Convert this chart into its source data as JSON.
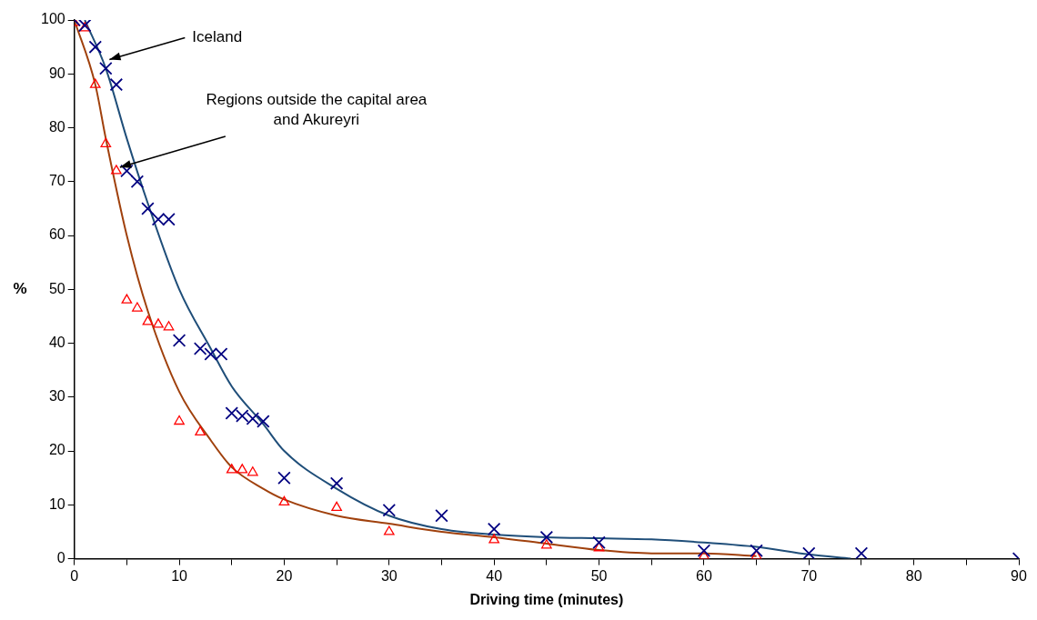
{
  "chart_data": {
    "type": "scatter",
    "xlabel": "Driving time (minutes)",
    "ylabel": "%",
    "xlim": [
      0,
      90
    ],
    "ylim": [
      0,
      100
    ],
    "xticks": [
      0,
      {
        "value": 5,
        "label": null
      },
      10,
      {
        "value": 15,
        "label": null
      },
      20,
      {
        "value": 25,
        "label": null
      },
      30,
      {
        "value": 35,
        "label": null
      },
      40,
      {
        "value": 45,
        "label": null
      },
      50,
      {
        "value": 55,
        "label": null
      },
      60,
      {
        "value": 65,
        "label": null
      },
      70,
      {
        "value": 75,
        "label": null
      },
      80,
      {
        "value": 85,
        "label": null
      },
      90
    ],
    "yticks": [
      0,
      10,
      20,
      30,
      40,
      50,
      60,
      70,
      80,
      90,
      100
    ],
    "grid": false,
    "legend": false,
    "series": [
      {
        "type": "scatter",
        "marker": "cross",
        "color": "#000080",
        "x": [
          0,
          1,
          2,
          3,
          4,
          5,
          6,
          7,
          8,
          9,
          10,
          12,
          13,
          14,
          15,
          16,
          17,
          18,
          20,
          25,
          30,
          35,
          40,
          45,
          50,
          60,
          65,
          70,
          75,
          90
        ],
        "values": [
          100,
          99,
          95,
          91,
          88,
          72,
          70,
          65,
          63,
          63,
          40.5,
          39,
          38,
          38,
          27,
          26.5,
          26,
          25.5,
          15,
          14,
          9,
          8,
          5.5,
          4,
          3,
          1.5,
          1.5,
          1,
          1,
          0
        ]
      },
      {
        "type": "scatter",
        "marker": "triangle",
        "color": "#ff0000",
        "x": [
          0,
          1,
          2,
          3,
          4,
          5,
          6,
          7,
          8,
          9,
          10,
          12,
          15,
          16,
          17,
          20,
          25,
          30,
          40,
          45,
          50,
          60,
          65
        ],
        "values": [
          99.5,
          98.5,
          88,
          77,
          72,
          48,
          46.5,
          44,
          43.5,
          43,
          25.5,
          23.5,
          16.5,
          16.5,
          16,
          10.5,
          9.5,
          5,
          3.5,
          2.5,
          2,
          0.5,
          0.5
        ]
      },
      {
        "type": "line",
        "marker": "none",
        "color": "#1f4e79",
        "x": [
          1,
          3,
          5,
          7,
          10,
          13,
          15,
          18,
          20,
          25,
          30,
          35,
          40,
          45,
          50,
          55,
          60,
          65,
          70,
          74
        ],
        "values": [
          100,
          91,
          78,
          66,
          50,
          39,
          32,
          25,
          20,
          13,
          8,
          5.5,
          4.5,
          4,
          3.8,
          3.6,
          3,
          2.2,
          0.8,
          0
        ]
      },
      {
        "type": "line",
        "marker": "none",
        "color": "#a0410d",
        "x": [
          0,
          2,
          3,
          5,
          7,
          10,
          13,
          15,
          18,
          20,
          25,
          30,
          35,
          40,
          45,
          50,
          55,
          60,
          65
        ],
        "values": [
          100,
          88,
          78,
          60,
          46,
          31,
          22,
          17,
          13,
          11,
          8,
          6.5,
          5,
          4,
          2.8,
          1.6,
          1,
          1,
          0.5
        ]
      }
    ],
    "annotations": [
      {
        "text": "Iceland",
        "x": 3,
        "y": 93
      },
      {
        "text": "Regions outside the capital area and Akureyri",
        "x": 4,
        "y": 73
      }
    ]
  }
}
